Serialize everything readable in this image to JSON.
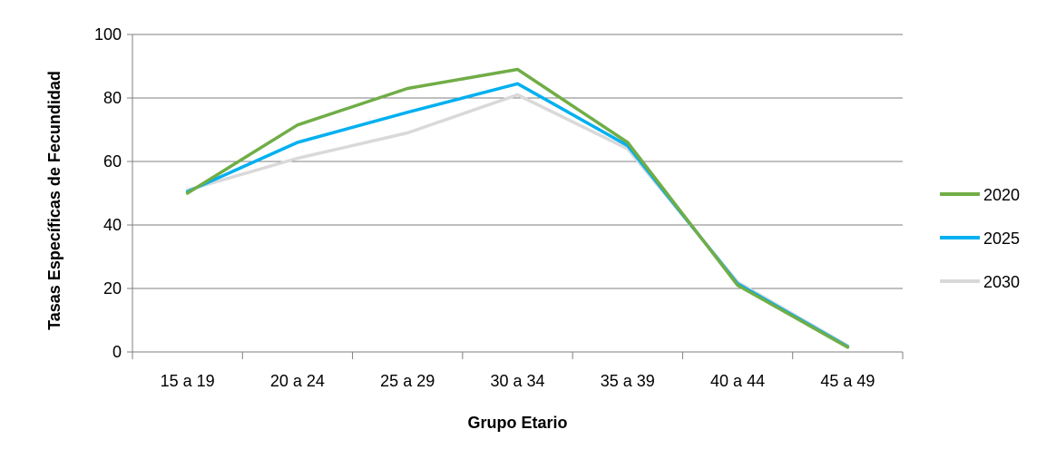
{
  "chart_data": {
    "type": "line",
    "title": "",
    "xlabel": "Grupo Etario",
    "ylabel": "Tasas Específicas de Fecundidad",
    "categories": [
      "15 a 19",
      "20 a 24",
      "25 a 29",
      "30 a 34",
      "35 a 39",
      "40 a 44",
      "45 a 49"
    ],
    "ylim": [
      0,
      100
    ],
    "yticks": [
      "0",
      "20",
      "40",
      "60",
      "80",
      "100"
    ],
    "grid": true,
    "legend_position": "right",
    "series": [
      {
        "name": "2020",
        "color": "#70ad47",
        "values": [
          50.0,
          71.5,
          83.0,
          89.0,
          66.0,
          21.0,
          1.5
        ]
      },
      {
        "name": "2025",
        "color": "#00b0f0",
        "values": [
          50.5,
          66.0,
          75.5,
          84.5,
          65.0,
          21.5,
          1.7
        ]
      },
      {
        "name": "2030",
        "color": "#d9d9d9",
        "values": [
          51.0,
          61.0,
          69.0,
          81.0,
          64.0,
          22.0,
          2.0
        ]
      }
    ]
  }
}
